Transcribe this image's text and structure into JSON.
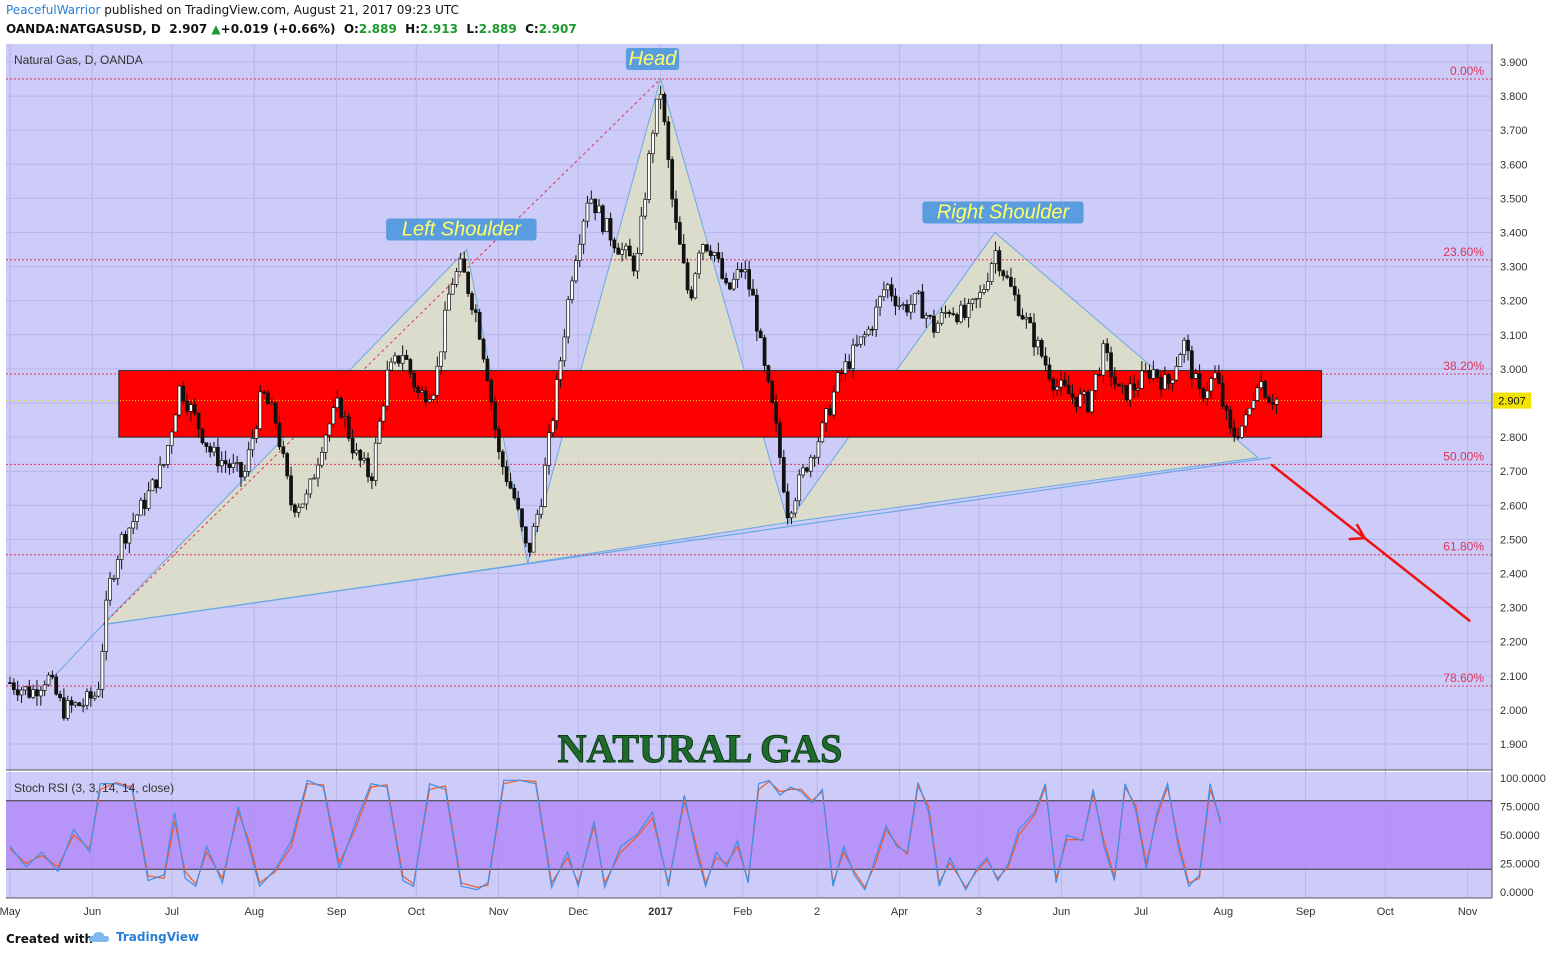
{
  "header": {
    "author": "PeacefulWarrior",
    "published": " published on TradingView.com, August 21, 2017 09:23 UTC",
    "symbol": "OANDA:NATGASUSD, D",
    "price": "2.907",
    "change": "+0.019 (+0.66%)",
    "o_label": "O:",
    "o": "2.889",
    "h_label": "H:",
    "h": "2.913",
    "l_label": "L:",
    "l": "2.889",
    "c_label": "C:",
    "c": "2.907"
  },
  "footer": {
    "created_with": "Created with",
    "brand": "TradingView"
  },
  "colors": {
    "plot_bg": "#cdcbf7",
    "zone": "#ff0000",
    "pattern_fill": "#e0e0c0",
    "pattern_line": "#6aa8e6",
    "fib": "#e0335a",
    "arrow": "#ee1111",
    "stoch_band": "#b086f7",
    "stoch_k": "#3d8fe8",
    "stoch_d": "#f05a28"
  },
  "chart_data": {
    "type": "candlestick",
    "title": "Natural Gas, D, OANDA",
    "watermark": "NATURAL GAS",
    "ylim": [
      1.85,
      3.93
    ],
    "y_ticks": [
      "3.900",
      "3.800",
      "3.700",
      "3.600",
      "3.500",
      "3.400",
      "3.300",
      "3.200",
      "3.100",
      "3.000",
      "2.900",
      "2.800",
      "2.700",
      "2.600",
      "2.500",
      "2.400",
      "2.300",
      "2.200",
      "2.100",
      "2.000",
      "1.900"
    ],
    "x_labels": [
      {
        "label": "May",
        "day": 0
      },
      {
        "label": "Jun",
        "day": 31
      },
      {
        "label": "Jul",
        "day": 61
      },
      {
        "label": "Aug",
        "day": 92
      },
      {
        "label": "Sep",
        "day": 123
      },
      {
        "label": "Oct",
        "day": 153
      },
      {
        "label": "Nov",
        "day": 184
      },
      {
        "label": "Dec",
        "day": 214
      },
      {
        "label": "2017",
        "day": 245
      },
      {
        "label": "Feb",
        "day": 276
      },
      {
        "label": "2",
        "day": 304
      },
      {
        "label": "Apr",
        "day": 335
      },
      {
        "label": "3",
        "day": 365
      },
      {
        "label": "Jun",
        "day": 396
      },
      {
        "label": "Jul",
        "day": 426
      },
      {
        "label": "Aug",
        "day": 457
      },
      {
        "label": "Sep",
        "day": 488
      },
      {
        "label": "Oct",
        "day": 518
      },
      {
        "label": "Nov",
        "day": 549
      }
    ],
    "last_price": 2.907,
    "last_price_label": "2.907",
    "fib_levels": [
      {
        "label": "0.00%",
        "price": 3.85
      },
      {
        "label": "23.60%",
        "price": 3.32
      },
      {
        "label": "38.20%",
        "price": 2.985
      },
      {
        "label": "50.00%",
        "price": 2.72
      },
      {
        "label": "61.80%",
        "price": 2.455
      },
      {
        "label": "78.60%",
        "price": 2.07
      }
    ],
    "zone": {
      "from_day": 41,
      "to_day": 494,
      "top": 2.995,
      "bottom": 2.8
    },
    "pattern_labels": [
      {
        "text": "Head",
        "day": 242,
        "price": 3.9
      },
      {
        "text": "Left Shoulder",
        "day": 170,
        "price": 3.4
      },
      {
        "text": "Right Shoulder",
        "day": 374,
        "price": 3.45
      }
    ],
    "pattern_points": {
      "left_shoulder": [
        [
          35,
          2.25
        ],
        [
          172,
          3.35
        ],
        [
          195,
          2.43
        ]
      ],
      "head": [
        [
          195,
          2.43
        ],
        [
          245,
          3.85
        ],
        [
          293,
          2.55
        ]
      ],
      "right_shoulder": [
        [
          293,
          2.55
        ],
        [
          371,
          3.4
        ],
        [
          470,
          2.74
        ]
      ],
      "left_fill": [
        [
          12,
          2.06
        ],
        [
          35,
          2.25
        ],
        [
          172,
          3.35
        ],
        [
          195,
          2.43
        ],
        [
          35,
          2.25
        ]
      ],
      "neckline": [
        [
          35,
          2.25
        ],
        [
          475,
          2.74
        ]
      ],
      "fib_line": [
        [
          35,
          2.25
        ],
        [
          245,
          3.85
        ]
      ],
      "arrow": [
        [
          475,
          2.72
        ],
        [
          550,
          2.26
        ]
      ]
    },
    "candles": [
      [
        0,
        2.08
      ],
      [
        8,
        2.05
      ],
      [
        14,
        2.1
      ],
      [
        20,
        2.0
      ],
      [
        28,
        2.02
      ],
      [
        33,
        2.05
      ],
      [
        37,
        2.35
      ],
      [
        42,
        2.5
      ],
      [
        50,
        2.6
      ],
      [
        58,
        2.72
      ],
      [
        64,
        2.95
      ],
      [
        70,
        2.85
      ],
      [
        76,
        2.75
      ],
      [
        82,
        2.72
      ],
      [
        88,
        2.68
      ],
      [
        95,
        2.93
      ],
      [
        100,
        2.85
      ],
      [
        106,
        2.6
      ],
      [
        112,
        2.62
      ],
      [
        118,
        2.8
      ],
      [
        124,
        2.9
      ],
      [
        130,
        2.75
      ],
      [
        136,
        2.68
      ],
      [
        142,
        2.98
      ],
      [
        148,
        3.05
      ],
      [
        154,
        2.92
      ],
      [
        160,
        2.95
      ],
      [
        166,
        3.25
      ],
      [
        170,
        3.3
      ],
      [
        176,
        3.15
      ],
      [
        180,
        2.98
      ],
      [
        184,
        2.75
      ],
      [
        190,
        2.62
      ],
      [
        195,
        2.45
      ],
      [
        200,
        2.62
      ],
      [
        206,
        2.95
      ],
      [
        212,
        3.3
      ],
      [
        218,
        3.52
      ],
      [
        224,
        3.42
      ],
      [
        230,
        3.35
      ],
      [
        236,
        3.3
      ],
      [
        242,
        3.7
      ],
      [
        245,
        3.82
      ],
      [
        250,
        3.45
      ],
      [
        256,
        3.2
      ],
      [
        260,
        3.38
      ],
      [
        265,
        3.35
      ],
      [
        270,
        3.22
      ],
      [
        276,
        3.3
      ],
      [
        280,
        3.2
      ],
      [
        284,
        3.0
      ],
      [
        288,
        2.85
      ],
      [
        293,
        2.58
      ],
      [
        300,
        2.72
      ],
      [
        306,
        2.82
      ],
      [
        312,
        2.97
      ],
      [
        318,
        3.05
      ],
      [
        324,
        3.12
      ],
      [
        330,
        3.25
      ],
      [
        336,
        3.18
      ],
      [
        342,
        3.2
      ],
      [
        348,
        3.12
      ],
      [
        354,
        3.18
      ],
      [
        360,
        3.15
      ],
      [
        366,
        3.22
      ],
      [
        371,
        3.35
      ],
      [
        376,
        3.25
      ],
      [
        382,
        3.15
      ],
      [
        388,
        3.05
      ],
      [
        394,
        2.95
      ],
      [
        400,
        2.92
      ],
      [
        406,
        2.9
      ],
      [
        412,
        3.05
      ],
      [
        418,
        2.92
      ],
      [
        424,
        2.95
      ],
      [
        430,
        3.0
      ],
      [
        436,
        2.95
      ],
      [
        442,
        3.08
      ],
      [
        448,
        2.92
      ],
      [
        454,
        2.98
      ],
      [
        460,
        2.8
      ],
      [
        466,
        2.85
      ],
      [
        470,
        2.98
      ],
      [
        474,
        2.92
      ],
      [
        478,
        2.907
      ]
    ]
  },
  "stoch": {
    "title": "Stoch RSI (3, 3, 14, 14, close)",
    "ylim": [
      0,
      100
    ],
    "band": [
      20,
      80
    ],
    "y_ticks": [
      "100.0000",
      "75.0000",
      "50.0000",
      "25.0000",
      "0.0000"
    ],
    "y_values": [
      100,
      75,
      50,
      25,
      0
    ],
    "k": [
      [
        0,
        40
      ],
      [
        6,
        22
      ],
      [
        12,
        35
      ],
      [
        18,
        18
      ],
      [
        24,
        55
      ],
      [
        30,
        35
      ],
      [
        34,
        95
      ],
      [
        40,
        95
      ],
      [
        46,
        90
      ],
      [
        52,
        10
      ],
      [
        58,
        15
      ],
      [
        62,
        70
      ],
      [
        66,
        12
      ],
      [
        70,
        5
      ],
      [
        74,
        40
      ],
      [
        80,
        8
      ],
      [
        86,
        75
      ],
      [
        90,
        40
      ],
      [
        94,
        5
      ],
      [
        100,
        20
      ],
      [
        106,
        45
      ],
      [
        112,
        98
      ],
      [
        118,
        92
      ],
      [
        124,
        20
      ],
      [
        130,
        60
      ],
      [
        136,
        95
      ],
      [
        142,
        92
      ],
      [
        148,
        10
      ],
      [
        152,
        5
      ],
      [
        158,
        95
      ],
      [
        164,
        90
      ],
      [
        170,
        5
      ],
      [
        176,
        2
      ],
      [
        180,
        8
      ],
      [
        186,
        98
      ],
      [
        192,
        98
      ],
      [
        198,
        95
      ],
      [
        204,
        4
      ],
      [
        210,
        35
      ],
      [
        214,
        5
      ],
      [
        220,
        62
      ],
      [
        224,
        4
      ],
      [
        230,
        40
      ],
      [
        236,
        50
      ],
      [
        242,
        70
      ],
      [
        248,
        5
      ],
      [
        254,
        85
      ],
      [
        258,
        40
      ],
      [
        262,
        5
      ],
      [
        266,
        35
      ],
      [
        270,
        22
      ],
      [
        274,
        45
      ],
      [
        278,
        8
      ],
      [
        282,
        95
      ],
      [
        286,
        98
      ],
      [
        290,
        85
      ],
      [
        294,
        92
      ],
      [
        298,
        88
      ],
      [
        302,
        78
      ],
      [
        306,
        90
      ],
      [
        310,
        5
      ],
      [
        314,
        40
      ],
      [
        318,
        15
      ],
      [
        322,
        2
      ],
      [
        326,
        30
      ],
      [
        330,
        58
      ],
      [
        334,
        40
      ],
      [
        338,
        35
      ],
      [
        342,
        96
      ],
      [
        346,
        70
      ],
      [
        350,
        5
      ],
      [
        354,
        30
      ],
      [
        360,
        2
      ],
      [
        364,
        20
      ],
      [
        368,
        30
      ],
      [
        372,
        10
      ],
      [
        376,
        25
      ],
      [
        380,
        55
      ],
      [
        386,
        70
      ],
      [
        390,
        95
      ],
      [
        394,
        8
      ],
      [
        398,
        50
      ],
      [
        404,
        45
      ],
      [
        408,
        90
      ],
      [
        412,
        40
      ],
      [
        416,
        10
      ],
      [
        420,
        95
      ],
      [
        424,
        72
      ],
      [
        428,
        20
      ],
      [
        432,
        70
      ],
      [
        436,
        95
      ],
      [
        440,
        40
      ],
      [
        444,
        5
      ],
      [
        448,
        15
      ],
      [
        452,
        95
      ],
      [
        456,
        60
      ]
    ],
    "d": [
      [
        0,
        38
      ],
      [
        6,
        25
      ],
      [
        12,
        32
      ],
      [
        18,
        22
      ],
      [
        24,
        50
      ],
      [
        30,
        38
      ],
      [
        34,
        90
      ],
      [
        40,
        96
      ],
      [
        46,
        92
      ],
      [
        52,
        14
      ],
      [
        58,
        12
      ],
      [
        62,
        62
      ],
      [
        66,
        18
      ],
      [
        70,
        7
      ],
      [
        74,
        35
      ],
      [
        80,
        12
      ],
      [
        86,
        70
      ],
      [
        90,
        45
      ],
      [
        94,
        8
      ],
      [
        100,
        18
      ],
      [
        106,
        40
      ],
      [
        112,
        95
      ],
      [
        118,
        94
      ],
      [
        124,
        25
      ],
      [
        130,
        55
      ],
      [
        136,
        92
      ],
      [
        142,
        94
      ],
      [
        148,
        14
      ],
      [
        152,
        7
      ],
      [
        158,
        90
      ],
      [
        164,
        93
      ],
      [
        170,
        8
      ],
      [
        176,
        4
      ],
      [
        180,
        6
      ],
      [
        186,
        95
      ],
      [
        192,
        98
      ],
      [
        198,
        97
      ],
      [
        204,
        8
      ],
      [
        210,
        30
      ],
      [
        214,
        8
      ],
      [
        220,
        58
      ],
      [
        224,
        8
      ],
      [
        230,
        35
      ],
      [
        236,
        48
      ],
      [
        242,
        65
      ],
      [
        248,
        8
      ],
      [
        254,
        80
      ],
      [
        258,
        45
      ],
      [
        262,
        8
      ],
      [
        266,
        30
      ],
      [
        270,
        25
      ],
      [
        274,
        40
      ],
      [
        278,
        10
      ],
      [
        282,
        90
      ],
      [
        286,
        97
      ],
      [
        290,
        88
      ],
      [
        294,
        90
      ],
      [
        298,
        90
      ],
      [
        302,
        80
      ],
      [
        306,
        88
      ],
      [
        310,
        8
      ],
      [
        314,
        35
      ],
      [
        318,
        18
      ],
      [
        322,
        4
      ],
      [
        326,
        25
      ],
      [
        330,
        55
      ],
      [
        334,
        42
      ],
      [
        338,
        33
      ],
      [
        342,
        93
      ],
      [
        346,
        75
      ],
      [
        350,
        8
      ],
      [
        354,
        26
      ],
      [
        360,
        4
      ],
      [
        364,
        18
      ],
      [
        368,
        28
      ],
      [
        372,
        12
      ],
      [
        376,
        22
      ],
      [
        380,
        50
      ],
      [
        386,
        68
      ],
      [
        390,
        92
      ],
      [
        394,
        12
      ],
      [
        398,
        46
      ],
      [
        404,
        46
      ],
      [
        408,
        86
      ],
      [
        412,
        45
      ],
      [
        416,
        13
      ],
      [
        420,
        92
      ],
      [
        424,
        76
      ],
      [
        428,
        25
      ],
      [
        432,
        66
      ],
      [
        436,
        92
      ],
      [
        440,
        45
      ],
      [
        444,
        8
      ],
      [
        448,
        12
      ],
      [
        452,
        90
      ],
      [
        456,
        63
      ]
    ]
  }
}
